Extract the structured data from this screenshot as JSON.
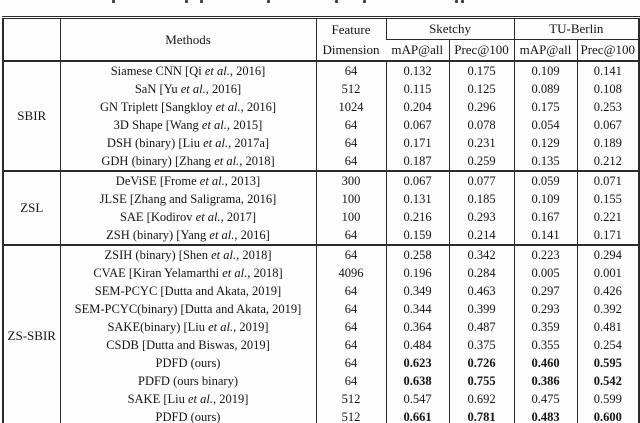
{
  "table": {
    "headers": {
      "methods": "Methods",
      "feature_line1": "Feature",
      "feature_line2": "Dimension",
      "sketchy": "Sketchy",
      "tu_berlin": "TU-Berlin",
      "sub": [
        "mAP@all",
        "Prec@100",
        "mAP@all",
        "Prec@100"
      ]
    },
    "groups": [
      {
        "label": "SBIR",
        "rows": [
          {
            "pre": "Siamese CNN [Qi ",
            "it": "et al.",
            "post": ", 2016]",
            "dim": "64",
            "vals": [
              "0.132",
              "0.175",
              "0.109",
              "0.141"
            ],
            "bold": false
          },
          {
            "pre": "SaN [Yu ",
            "it": "et al.",
            "post": ", 2016]",
            "dim": "512",
            "vals": [
              "0.115",
              "0.125",
              "0.089",
              "0.108"
            ],
            "bold": false
          },
          {
            "pre": "GN Triplett [Sangkloy ",
            "it": "et al.",
            "post": ", 2016]",
            "dim": "1024",
            "vals": [
              "0.204",
              "0.296",
              "0.175",
              "0.253"
            ],
            "bold": false
          },
          {
            "pre": "3D Shape [Wang ",
            "it": "et al.",
            "post": ", 2015]",
            "dim": "64",
            "vals": [
              "0.067",
              "0.078",
              "0.054",
              "0.067"
            ],
            "bold": false
          },
          {
            "pre": "DSH (binary) [Liu ",
            "it": "et al.",
            "post": ", 2017a]",
            "dim": "64",
            "vals": [
              "0.171",
              "0.231",
              "0.129",
              "0.189"
            ],
            "bold": false
          },
          {
            "pre": "GDH (binary) [Zhang ",
            "it": "et al.",
            "post": ", 2018]",
            "dim": "64",
            "vals": [
              "0.187",
              "0.259",
              "0.135",
              "0.212"
            ],
            "bold": false
          }
        ]
      },
      {
        "label": "ZSL",
        "rows": [
          {
            "pre": "DeViSE [Frome ",
            "it": "et al.",
            "post": ", 2013]",
            "dim": "300",
            "vals": [
              "0.067",
              "0.077",
              "0.059",
              "0.071"
            ],
            "bold": false
          },
          {
            "pre": "JLSE [Zhang and Saligrama, 2016]",
            "it": "",
            "post": "",
            "dim": "100",
            "vals": [
              "0.131",
              "0.185",
              "0.109",
              "0.155"
            ],
            "bold": false
          },
          {
            "pre": "SAE [Kodirov ",
            "it": "et al.",
            "post": ", 2017]",
            "dim": "100",
            "vals": [
              "0.216",
              "0.293",
              "0.167",
              "0.221"
            ],
            "bold": false
          },
          {
            "pre": "ZSH (binary) [Yang ",
            "it": "et al.",
            "post": ", 2016]",
            "dim": "64",
            "vals": [
              "0.159",
              "0.214",
              "0.141",
              "0.171"
            ],
            "bold": false
          }
        ]
      },
      {
        "label": "ZS-SBIR",
        "rows": [
          {
            "pre": "ZSIH (binary) [Shen ",
            "it": "et al.",
            "post": ", 2018]",
            "dim": "64",
            "vals": [
              "0.258",
              "0.342",
              "0.223",
              "0.294"
            ],
            "bold": false
          },
          {
            "pre": "CVAE [Kiran Yelamarthi ",
            "it": "et al.",
            "post": ", 2018]",
            "dim": "4096",
            "vals": [
              "0.196",
              "0.284",
              "0.005",
              "0.001"
            ],
            "bold": false
          },
          {
            "pre": "SEM-PCYC [Dutta and Akata, 2019]",
            "it": "",
            "post": "",
            "dim": "64",
            "vals": [
              "0.349",
              "0.463",
              "0.297",
              "0.426"
            ],
            "bold": false
          },
          {
            "pre": "SEM-PCYC(binary) [Dutta and Akata, 2019]",
            "it": "",
            "post": "",
            "dim": "64",
            "vals": [
              "0.344",
              "0.399",
              "0.293",
              "0.392"
            ],
            "bold": false
          },
          {
            "pre": "SAKE(binary) [Liu ",
            "it": "et al.",
            "post": ", 2019]",
            "dim": "64",
            "vals": [
              "0.364",
              "0.487",
              "0.359",
              "0.481"
            ],
            "bold": false
          },
          {
            "pre": "CSDB [Dutta and Biswas, 2019]",
            "it": "",
            "post": "",
            "dim": "64",
            "vals": [
              "0.484",
              "0.375",
              "0.355",
              "0.254"
            ],
            "bold": false
          },
          {
            "pre": "PDFD (ours)",
            "it": "",
            "post": "",
            "dim": "64",
            "vals": [
              "0.623",
              "0.726",
              "0.460",
              "0.595"
            ],
            "bold": true
          },
          {
            "pre": "PDFD (ours binary)",
            "it": "",
            "post": "",
            "dim": "64",
            "vals": [
              "0.638",
              "0.755",
              "0.386",
              "0.542"
            ],
            "bold": true
          },
          {
            "pre": "SAKE [Liu ",
            "it": "et al.",
            "post": ", 2019]",
            "dim": "512",
            "vals": [
              "0.547",
              "0.692",
              "0.475",
              "0.599"
            ],
            "bold": false
          },
          {
            "pre": "PDFD (ours)",
            "it": "",
            "post": "",
            "dim": "512",
            "vals": [
              "0.661",
              "0.781",
              "0.483",
              "0.600"
            ],
            "bold": true
          }
        ]
      }
    ]
  }
}
